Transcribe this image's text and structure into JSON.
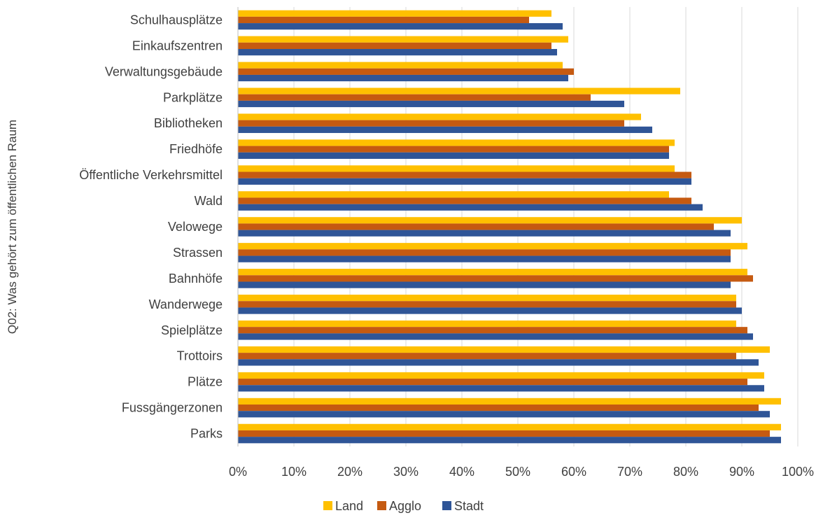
{
  "chart_data": {
    "type": "bar",
    "orientation": "horizontal",
    "ylabel": "Q02: Was gehört zum öffentlichen Raum",
    "xlabel": "",
    "xlim": [
      0,
      100
    ],
    "xticks": [
      "0%",
      "10%",
      "20%",
      "30%",
      "40%",
      "50%",
      "60%",
      "70%",
      "80%",
      "90%",
      "100%"
    ],
    "grid": true,
    "legend_position": "bottom",
    "categories": [
      "Schulhausplätze",
      "Einkaufszentren",
      "Verwaltungsgebäude",
      "Parkplätze",
      "Bibliotheken",
      "Friedhöfe",
      "Öffentliche Verkehrsmittel",
      "Wald",
      "Velowege",
      "Strassen",
      "Bahnhöfe",
      "Wanderwege",
      "Spielplätze",
      "Trottoirs",
      "Plätze",
      "Fussgängerzonen",
      "Parks"
    ],
    "series": [
      {
        "name": "Land",
        "color": "#FFC000",
        "values": [
          56,
          59,
          58,
          79,
          72,
          78,
          78,
          77,
          90,
          91,
          91,
          89,
          89,
          95,
          94,
          97,
          97
        ]
      },
      {
        "name": "Agglo",
        "color": "#C55A11",
        "values": [
          52,
          56,
          60,
          63,
          69,
          77,
          81,
          81,
          85,
          88,
          92,
          89,
          91,
          89,
          91,
          93,
          95
        ]
      },
      {
        "name": "Stadt",
        "color": "#2F5597",
        "values": [
          58,
          57,
          59,
          69,
          74,
          77,
          81,
          83,
          88,
          88,
          88,
          90,
          92,
          93,
          94,
          95,
          97
        ]
      }
    ]
  }
}
